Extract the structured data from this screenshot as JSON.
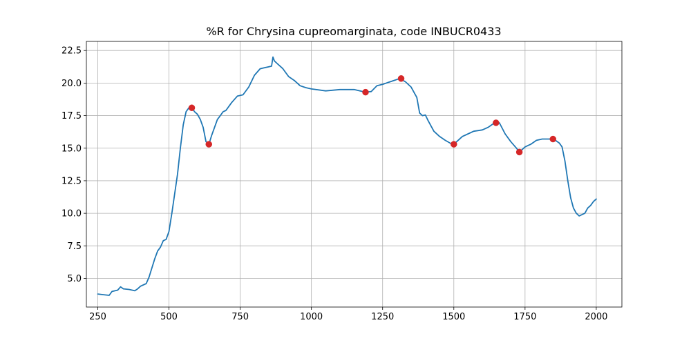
{
  "chart_data": {
    "type": "line",
    "title": "%R for Chrysina cupreomarginata, code INBUCR0433",
    "xlabel": "",
    "ylabel": "",
    "xlim": [
      210,
      2090
    ],
    "ylim": [
      2.8,
      23.2
    ],
    "x_ticks": [
      250,
      500,
      750,
      1000,
      1250,
      1500,
      1750,
      2000
    ],
    "y_ticks": [
      5.0,
      7.5,
      10.0,
      12.5,
      15.0,
      17.5,
      20.0,
      22.5
    ],
    "x_tick_labels": [
      "250",
      "500",
      "750",
      "1000",
      "1250",
      "1500",
      "1750",
      "2000"
    ],
    "y_tick_labels": [
      "5.0",
      "7.5",
      "10.0",
      "12.5",
      "15.0",
      "17.5",
      "20.0",
      "22.5"
    ],
    "grid": true,
    "line_color": "#1f77b4",
    "marker_color": "#d62728",
    "series": [
      {
        "x": [
          250,
          270,
          290,
          300,
          320,
          330,
          340,
          360,
          380,
          390,
          400,
          420,
          430,
          440,
          450,
          460,
          470,
          480,
          490,
          500,
          510,
          520,
          530,
          540,
          550,
          560,
          570,
          580,
          590,
          600,
          610,
          620,
          630,
          640,
          650,
          660,
          670,
          680,
          690,
          700,
          720,
          740,
          760,
          780,
          800,
          820,
          840,
          860,
          865,
          870,
          880,
          900,
          920,
          940,
          960,
          980,
          1000,
          1050,
          1100,
          1150,
          1190,
          1210,
          1230,
          1250,
          1270,
          1290,
          1310,
          1330,
          1350,
          1370,
          1380,
          1390,
          1400,
          1410,
          1430,
          1450,
          1470,
          1490,
          1500,
          1510,
          1530,
          1550,
          1570,
          1600,
          1620,
          1640,
          1660,
          1680,
          1700,
          1720,
          1730,
          1750,
          1770,
          1790,
          1810,
          1830,
          1850,
          1870,
          1880,
          1890,
          1900,
          1910,
          1920,
          1930,
          1940,
          1960,
          1970,
          1980,
          1990,
          2000
        ],
        "y": [
          3.8,
          3.75,
          3.7,
          4.0,
          4.1,
          4.35,
          4.2,
          4.15,
          4.05,
          4.2,
          4.4,
          4.6,
          5.1,
          5.8,
          6.5,
          7.1,
          7.4,
          7.9,
          8.0,
          8.6,
          10.0,
          11.5,
          13.0,
          15.0,
          16.8,
          17.8,
          18.1,
          18.1,
          17.8,
          17.6,
          17.2,
          16.6,
          15.5,
          15.3,
          16.0,
          16.6,
          17.2,
          17.5,
          17.8,
          17.9,
          18.5,
          19.0,
          19.1,
          19.7,
          20.6,
          21.1,
          21.2,
          21.3,
          22.0,
          21.7,
          21.5,
          21.1,
          20.5,
          20.2,
          19.8,
          19.65,
          19.55,
          19.4,
          19.5,
          19.5,
          19.3,
          19.35,
          19.8,
          19.9,
          20.05,
          20.2,
          20.35,
          20.1,
          19.7,
          18.9,
          17.7,
          17.5,
          17.55,
          17.1,
          16.3,
          15.9,
          15.6,
          15.35,
          15.3,
          15.5,
          15.9,
          16.1,
          16.3,
          16.4,
          16.6,
          16.9,
          16.95,
          16.1,
          15.5,
          15.0,
          14.7,
          15.1,
          15.3,
          15.6,
          15.7,
          15.7,
          15.7,
          15.4,
          15.1,
          14.0,
          12.5,
          11.2,
          10.4,
          10.0,
          9.8,
          10.0,
          10.4,
          10.6,
          10.9,
          11.1
        ]
      }
    ],
    "markers": {
      "x": [
        580,
        640,
        1190,
        1315,
        1500,
        1648,
        1730,
        1848
      ],
      "y": [
        18.1,
        15.3,
        19.3,
        20.35,
        15.3,
        16.95,
        14.7,
        15.7
      ]
    }
  }
}
